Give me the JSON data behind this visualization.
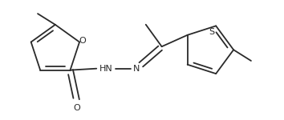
{
  "bg_color": "#ffffff",
  "line_color": "#2a2a2a",
  "text_color": "#2a2a2a",
  "line_width": 1.3,
  "font_size": 8.0,
  "figsize": [
    3.54,
    1.5
  ],
  "dpi": 100,
  "xlim": [
    0,
    354
  ],
  "ylim": [
    0,
    150
  ]
}
